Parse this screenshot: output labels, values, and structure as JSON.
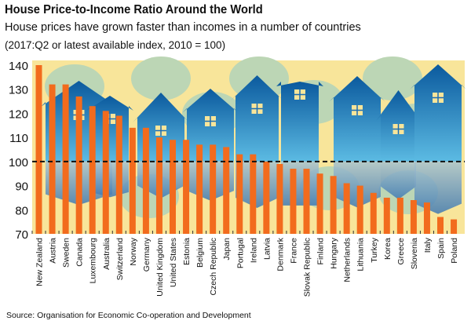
{
  "title": "House Price-to-Income Ratio Around the World",
  "subtitle": "House prices have grown faster than incomes in a number of countries",
  "note": "(2017:Q2 or latest available index, 2010 = 100)",
  "source": "Source: Organisation for Economic Co-operation and Development",
  "colors": {
    "bar": "#f26b1d",
    "background": "#f8e59a",
    "house": "#1a6db3",
    "tree": "#bcd6b5",
    "reference_line": "#111111"
  },
  "chart_data": {
    "type": "bar",
    "title": "House Price-to-Income Ratio Around the World",
    "xlabel": "",
    "ylabel": "",
    "ylim": [
      70,
      140
    ],
    "yticks": [
      70,
      80,
      90,
      100,
      110,
      120,
      130,
      140
    ],
    "reference_line": 100,
    "grid": false,
    "categories": [
      "New Zealand",
      "Austria",
      "Sweden",
      "Canada",
      "Luxembourg",
      "Australia",
      "Switzerland",
      "Norway",
      "Germany",
      "United Kingdom",
      "United States",
      "Estonia",
      "Belgium",
      "Czech Republic",
      "Japan",
      "Portugal",
      "Ireland",
      "Latvia",
      "Denmark",
      "France",
      "Slovak Republic",
      "Finland",
      "Hungary",
      "Netherlands",
      "Lithuania",
      "Turkey",
      "Korea",
      "Greece",
      "Slovenia",
      "Italy",
      "Spain",
      "Poland"
    ],
    "values": [
      140,
      132,
      132,
      127,
      123,
      121,
      119,
      114,
      114,
      110,
      109,
      109,
      107,
      107,
      106,
      103,
      103,
      100,
      99,
      97,
      97,
      95,
      94,
      91,
      90,
      87,
      85,
      85,
      84,
      83,
      77,
      76
    ]
  }
}
